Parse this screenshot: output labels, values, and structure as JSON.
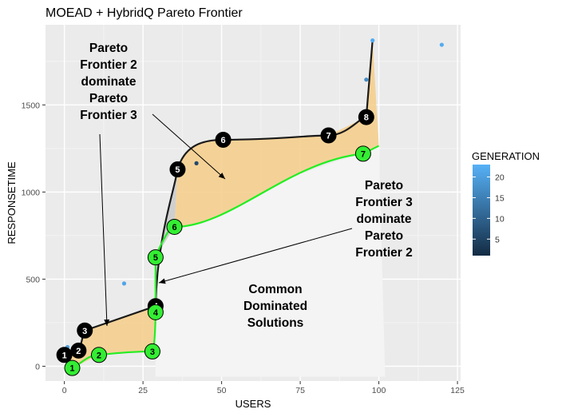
{
  "chart_data": {
    "type": "scatter",
    "title": "MOEAD + HybridQ Pareto Frontier",
    "xlabel": "USERS",
    "ylabel": "RESPONSETIME",
    "xlim": [
      -6,
      126
    ],
    "ylim": [
      -85,
      1960
    ],
    "x_ticks": [
      "0",
      "25",
      "50",
      "75",
      "100",
      "125"
    ],
    "y_ticks": [
      "0",
      "500",
      "1000",
      "1500"
    ],
    "grid": true,
    "legend": {
      "title": "GENERATION",
      "position": "right",
      "range": [
        1,
        23
      ],
      "ticks": [
        "5",
        "10",
        "15",
        "20"
      ],
      "color_low": "#132b43",
      "color_high": "#56b1f7"
    },
    "points": [
      {
        "x": 1,
        "y": 110,
        "generation": 20
      },
      {
        "x": 19,
        "y": 475,
        "generation": 21
      },
      {
        "x": 42,
        "y": 1165,
        "generation": 6
      },
      {
        "x": 96,
        "y": 1645,
        "generation": 17
      },
      {
        "x": 98,
        "y": 1870,
        "generation": 22
      },
      {
        "x": 120,
        "y": 1845,
        "generation": 22
      }
    ],
    "frontier_2": {
      "name": "Pareto Frontier 2",
      "color": "#1a1a1a",
      "points": [
        {
          "label": "1",
          "x": 0,
          "y": 65
        },
        {
          "label": "2",
          "x": 4.5,
          "y": 90
        },
        {
          "label": "3",
          "x": 6.5,
          "y": 205
        },
        {
          "label": "4",
          "x": 29,
          "y": 345
        },
        {
          "label": "5",
          "x": 36,
          "y": 1130
        },
        {
          "label": "6",
          "x": 50.5,
          "y": 1300
        },
        {
          "label": "7",
          "x": 84,
          "y": 1325
        },
        {
          "label": "8",
          "x": 96,
          "y": 1430
        }
      ],
      "end": {
        "x": 98,
        "y": 1870
      }
    },
    "frontier_3": {
      "name": "Pareto Frontier 3",
      "color": "#22ee22",
      "points": [
        {
          "label": "1",
          "x": 2.5,
          "y": -10
        },
        {
          "label": "2",
          "x": 11,
          "y": 65
        },
        {
          "label": "3",
          "x": 28,
          "y": 85
        },
        {
          "label": "4",
          "x": 29,
          "y": 310
        },
        {
          "label": "5",
          "x": 29,
          "y": 625
        },
        {
          "label": "6",
          "x": 35,
          "y": 800
        },
        {
          "label": "7",
          "x": 95,
          "y": 1220
        }
      ],
      "end": {
        "x": 100,
        "y": 1265
      }
    },
    "annotations": [
      {
        "lines": [
          "Pareto",
          "Frontier 2",
          "dominate",
          "Pareto",
          "Frontier 3"
        ]
      },
      {
        "lines": [
          "Pareto",
          "Frontier 3",
          "dominate",
          "Pareto",
          "Frontier 2"
        ]
      },
      {
        "lines": [
          "Common",
          "Dominated",
          "Solutions"
        ]
      }
    ]
  }
}
